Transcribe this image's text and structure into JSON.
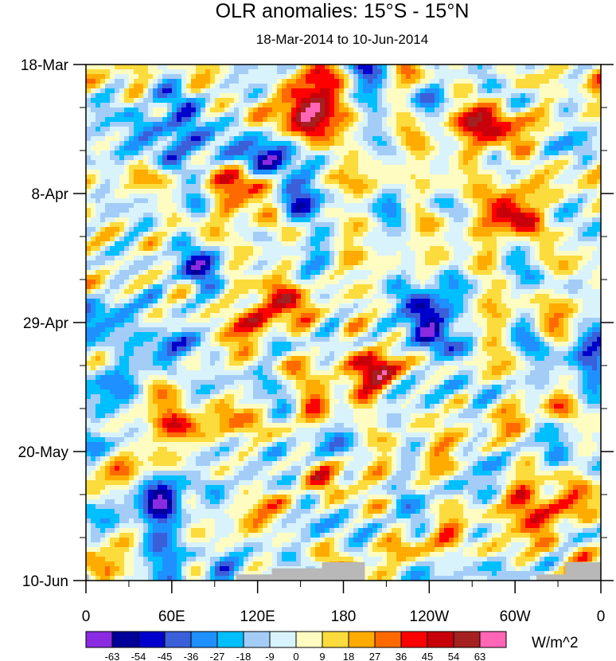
{
  "chart_data": {
    "type": "heatmap",
    "title": "OLR anomalies: 15°S - 15°N",
    "subtitle": "18-Mar-2014 to 10-Jun-2014",
    "x_ticks": [
      "0",
      "60E",
      "120E",
      "180",
      "120W",
      "60W",
      "0"
    ],
    "y_ticks": [
      "18-Mar",
      "8-Apr",
      "29-Apr",
      "20-May",
      "10-Jun"
    ],
    "xlim": [
      0,
      360
    ],
    "y_range_days": [
      0,
      84
    ],
    "colorbar": {
      "units": "W/m^2",
      "levels": [
        "-63",
        "-54",
        "-45",
        "-36",
        "-27",
        "-18",
        "-9",
        "0",
        "9",
        "18",
        "27",
        "36",
        "45",
        "54",
        "63"
      ],
      "colors": [
        "#8a2be2",
        "#000099",
        "#0000cc",
        "#3a5fd9",
        "#1e90ff",
        "#00bfff",
        "#a3cdf7",
        "#d9f3fc",
        "#fffcc2",
        "#fcdb3c",
        "#ffab00",
        "#ff6a00",
        "#ff0000",
        "#c8000a",
        "#a52020",
        "#ff66b6"
      ]
    },
    "features": {
      "strong_negative": [
        {
          "lon": 195,
          "day": 1
        },
        {
          "lon": 45,
          "day": 11
        },
        {
          "lon": 85,
          "day": 12
        },
        {
          "lon": 130,
          "day": 15
        },
        {
          "lon": 145,
          "day": 22
        },
        {
          "lon": 75,
          "day": 32
        },
        {
          "lon": 5,
          "day": 40
        },
        {
          "lon": 235,
          "day": 39
        },
        {
          "lon": 245,
          "day": 45
        },
        {
          "lon": 60,
          "day": 47
        },
        {
          "lon": 355,
          "day": 48
        },
        {
          "lon": 20,
          "day": 52
        },
        {
          "lon": 55,
          "day": 71
        },
        {
          "lon": 60,
          "day": 79
        }
      ],
      "strong_positive": [
        {
          "lon": 165,
          "day": 5
        },
        {
          "lon": 155,
          "day": 9
        },
        {
          "lon": 280,
          "day": 11
        },
        {
          "lon": 110,
          "day": 21
        },
        {
          "lon": 295,
          "day": 24
        },
        {
          "lon": 125,
          "day": 40
        },
        {
          "lon": 195,
          "day": 50
        },
        {
          "lon": 60,
          "day": 56
        },
        {
          "lon": 320,
          "day": 74
        }
      ],
      "missing_data": [
        {
          "lon_start": 0,
          "lon_end": 2,
          "day_start": 83,
          "day_end": 84
        },
        {
          "lon_start": 105,
          "lon_end": 130,
          "day_start": 83,
          "day_end": 84
        },
        {
          "lon_start": 130,
          "lon_end": 165,
          "day_start": 82,
          "day_end": 84
        },
        {
          "lon_start": 165,
          "lon_end": 195,
          "day_start": 81,
          "day_end": 84
        },
        {
          "lon_start": 315,
          "lon_end": 335,
          "day_start": 83,
          "day_end": 84
        },
        {
          "lon_start": 335,
          "lon_end": 360,
          "day_start": 81,
          "day_end": 84
        }
      ]
    }
  }
}
